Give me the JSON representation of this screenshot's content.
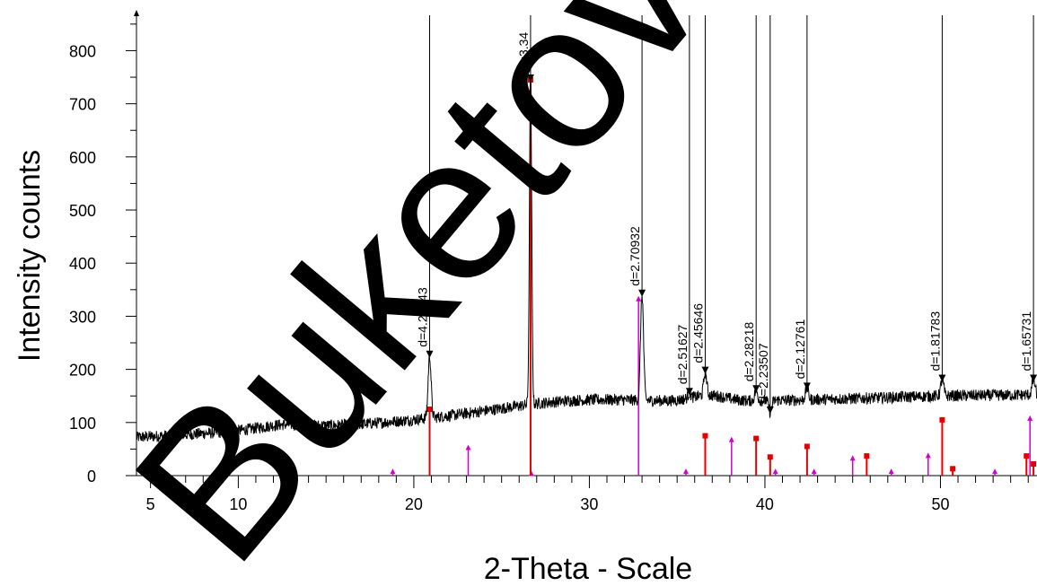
{
  "chart_data": {
    "type": "line",
    "title": "",
    "xlabel": "2-Theta - Scale",
    "ylabel": "Intensity counts",
    "xlim": [
      4.2,
      55.5
    ],
    "ylim": [
      0,
      870
    ],
    "x_ticks": [
      5,
      10,
      20,
      30,
      40,
      50
    ],
    "y_ticks": [
      0,
      100,
      200,
      300,
      400,
      500,
      600,
      700,
      800
    ],
    "grid": false,
    "legend": "none",
    "series_colors": {
      "pattern": "#000000",
      "ref_red": "#e30000",
      "ref_magenta": "#d000d0"
    },
    "pattern_peaks": [
      {
        "x": 20.9,
        "y": 225,
        "label": "d=4.25743"
      },
      {
        "x": 26.65,
        "y": 745,
        "label": "d=3.34"
      },
      {
        "x": 33.0,
        "y": 340,
        "label": "d=2.70932"
      },
      {
        "x": 35.7,
        "y": 155,
        "label": "d=2.51627"
      },
      {
        "x": 36.6,
        "y": 195,
        "label": "d=2.45646"
      },
      {
        "x": 39.5,
        "y": 160,
        "label": "d=2.28218"
      },
      {
        "x": 40.3,
        "y": 120,
        "label": "d=2.23507"
      },
      {
        "x": 42.4,
        "y": 165,
        "label": "d=2.12761"
      },
      {
        "x": 50.1,
        "y": 180,
        "label": "d=1.81783"
      },
      {
        "x": 55.3,
        "y": 180,
        "label": "d=1.65731"
      }
    ],
    "reference_red": [
      {
        "x": 20.9,
        "y": 125
      },
      {
        "x": 26.65,
        "y": 745
      },
      {
        "x": 36.6,
        "y": 75
      },
      {
        "x": 39.5,
        "y": 70
      },
      {
        "x": 40.3,
        "y": 35
      },
      {
        "x": 42.4,
        "y": 55
      },
      {
        "x": 45.8,
        "y": 37
      },
      {
        "x": 50.1,
        "y": 105
      },
      {
        "x": 50.7,
        "y": 13
      },
      {
        "x": 54.9,
        "y": 37
      },
      {
        "x": 55.3,
        "y": 22
      }
    ],
    "reference_magenta": [
      {
        "x": 18.8,
        "y": 10
      },
      {
        "x": 23.1,
        "y": 55
      },
      {
        "x": 26.7,
        "y": 6
      },
      {
        "x": 32.8,
        "y": 335
      },
      {
        "x": 35.5,
        "y": 10
      },
      {
        "x": 38.1,
        "y": 70
      },
      {
        "x": 40.6,
        "y": 10
      },
      {
        "x": 42.8,
        "y": 10
      },
      {
        "x": 45.0,
        "y": 35
      },
      {
        "x": 47.2,
        "y": 10
      },
      {
        "x": 49.3,
        "y": 40
      },
      {
        "x": 53.1,
        "y": 10
      },
      {
        "x": 55.1,
        "y": 110
      }
    ]
  },
  "watermark": {
    "text": "Buketov Uni"
  }
}
